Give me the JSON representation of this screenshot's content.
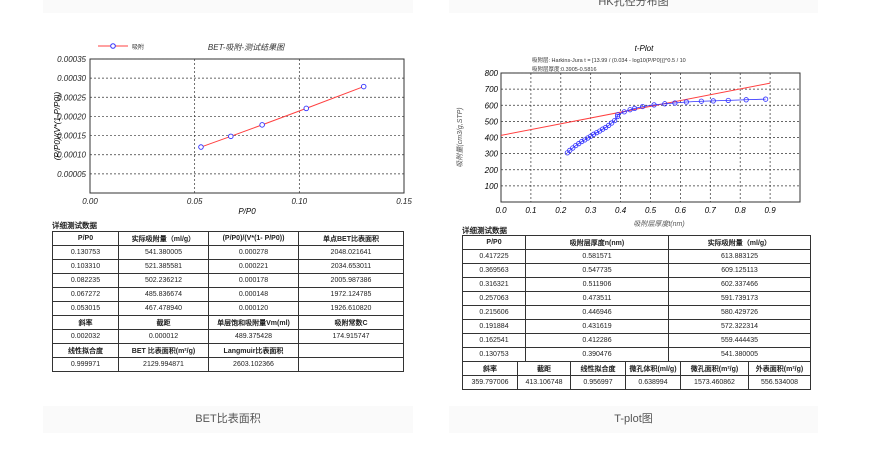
{
  "top_cards": {
    "right_caption": "HK孔径分布图"
  },
  "bet": {
    "caption": "BET比表面积",
    "section_title": "详细测试数据",
    "headers": [
      "P/P0",
      "实际吸附量（ml/g）",
      "(P/P0)/(V*(1- P/P0))",
      "单点BET比表面积"
    ],
    "rows": [
      [
        "0.130753",
        "541.380005",
        "0.000278",
        "2048.021641"
      ],
      [
        "0.103310",
        "521.385581",
        "0.000221",
        "2034.653011"
      ],
      [
        "0.082235",
        "502.236212",
        "0.000178",
        "2005.987386"
      ],
      [
        "0.067272",
        "485.836674",
        "0.000148",
        "1972.124785"
      ],
      [
        "0.053015",
        "467.478940",
        "0.000120",
        "1926.610820"
      ]
    ],
    "summary1_headers": [
      "斜率",
      "截距",
      "单层饱和吸附量Vm(ml)",
      "吸附常数C"
    ],
    "summary1_values": [
      "0.002032",
      "0.000012",
      "489.375428",
      "174.915747"
    ],
    "summary2_headers": [
      "线性拟合度",
      "BET 比表面积(m²/g)",
      "Langmuir比表面积",
      ""
    ],
    "summary2_values": [
      "0.999971",
      "2129.994871",
      "2603.102366",
      ""
    ]
  },
  "tplot": {
    "caption": "T-plot图",
    "section_title": "详细测试数据",
    "headers": [
      "P/P0",
      "吸附层厚度n(nm)",
      "实际吸附量（ml/g）"
    ],
    "rows": [
      [
        "0.417225",
        "0.581571",
        "613.883125"
      ],
      [
        "0.369563",
        "0.547735",
        "609.125113"
      ],
      [
        "0.316321",
        "0.511906",
        "602.337466"
      ],
      [
        "0.257063",
        "0.473511",
        "591.739173"
      ],
      [
        "0.215606",
        "0.446946",
        "580.429726"
      ],
      [
        "0.191884",
        "0.431619",
        "572.322314"
      ],
      [
        "0.162541",
        "0.412286",
        "559.444435"
      ],
      [
        "0.130753",
        "0.390476",
        "541.380005"
      ]
    ],
    "summary_headers": [
      "斜率",
      "截距",
      "线性拟合度",
      "微孔体积(ml/g)",
      "微孔面积(m²/g)",
      "外表面积(m²/g)"
    ],
    "summary_values": [
      "359.797006",
      "413.106748",
      "0.956997",
      "0.638994",
      "1573.460862",
      "556.534008"
    ]
  },
  "chart_data": [
    {
      "type": "line",
      "title": "BET-吸附-测试结果图",
      "xlabel": "P/P0",
      "ylabel": "(P/P0)/(V*(1-P/P0))",
      "legend": [
        "吸附"
      ],
      "legend_placement": "top-left",
      "xlim": [
        0,
        0.15
      ],
      "ylim": [
        0,
        0.00035
      ],
      "xticks": [
        "0.00",
        "0.05",
        "0.10",
        "0.15"
      ],
      "yticks": [
        "0.00005",
        "0.00010",
        "0.00015",
        "0.00020",
        "0.00025",
        "0.00030",
        "0.00035"
      ],
      "grid": true,
      "series": [
        {
          "name": "吸附",
          "x": [
            0.053015,
            0.067272,
            0.082235,
            0.10331,
            0.130753
          ],
          "y": [
            0.00012,
            0.000148,
            0.000178,
            0.000221,
            0.000278
          ],
          "color": "#ff4040",
          "marker_color": "#3030ff"
        }
      ]
    },
    {
      "type": "scatter",
      "title": "t-Plot",
      "subtitle1": "吸附层: Harkins-Jura t = [13.99 / (0.034 - log10(P/P0))]^0.5 / 10",
      "subtitle2": "吸附层厚度:0.3905-0.5816",
      "xlabel": "吸附层厚度t(nm)",
      "ylabel": "吸附量(cm3/g,STP)",
      "xlim": [
        0,
        1.0
      ],
      "ylim": [
        0,
        800
      ],
      "xticks": [
        "0.0",
        "0.1",
        "0.2",
        "0.3",
        "0.4",
        "0.5",
        "0.6",
        "0.7",
        "0.8",
        "0.9"
      ],
      "yticks": [
        "100",
        "200",
        "300",
        "400",
        "500",
        "600",
        "700",
        "800"
      ],
      "grid": true,
      "series": [
        {
          "type": "scatter",
          "x": [
            0.222,
            0.23,
            0.24,
            0.25,
            0.26,
            0.27,
            0.28,
            0.29,
            0.3,
            0.31,
            0.32,
            0.33,
            0.34,
            0.35,
            0.36,
            0.37,
            0.38,
            0.39,
            0.390476,
            0.412286,
            0.431619,
            0.446946,
            0.473511,
            0.511906,
            0.547735,
            0.581571,
            0.62,
            0.67,
            0.71,
            0.76,
            0.82,
            0.885
          ],
          "y": [
            305,
            320,
            335,
            350,
            362,
            375,
            385,
            397,
            408,
            420,
            430,
            440,
            452,
            462,
            475,
            490,
            505,
            530,
            541.38,
            559.44,
            572.32,
            580.43,
            591.74,
            602.34,
            609.13,
            613.88,
            620,
            625,
            627,
            630,
            634,
            638
          ],
          "color": "#3030ff"
        },
        {
          "type": "line",
          "slope": 359.797006,
          "intercept": 413.106748,
          "color": "#ff4040"
        }
      ]
    }
  ]
}
